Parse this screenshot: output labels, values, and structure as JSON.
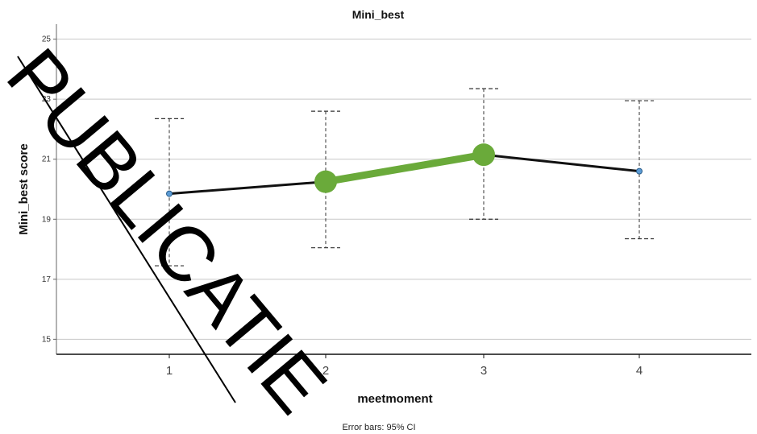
{
  "chart_data": {
    "type": "line",
    "title": "Mini_best",
    "xlabel": "meetmoment",
    "ylabel": "Mini_best score",
    "categories": [
      "1",
      "2",
      "3",
      "4"
    ],
    "series": [
      {
        "values": [
          19.85,
          20.25,
          21.15,
          20.6
        ]
      }
    ],
    "error_bars": {
      "lower": [
        17.45,
        18.05,
        19.0,
        18.35
      ],
      "upper": [
        22.35,
        22.6,
        23.35,
        22.95
      ]
    },
    "highlighted_segment": {
      "from": "2",
      "to": "3",
      "color": "#6aaa3a"
    },
    "ylim": [
      14.5,
      25.5
    ],
    "yticks": [
      15,
      17,
      19,
      21,
      23,
      25
    ],
    "grid": true,
    "note": "Error bars: 95% CI",
    "line_color": "#111111",
    "marker_color": "#5b9bd5"
  },
  "watermark": "PUBLICATIE"
}
